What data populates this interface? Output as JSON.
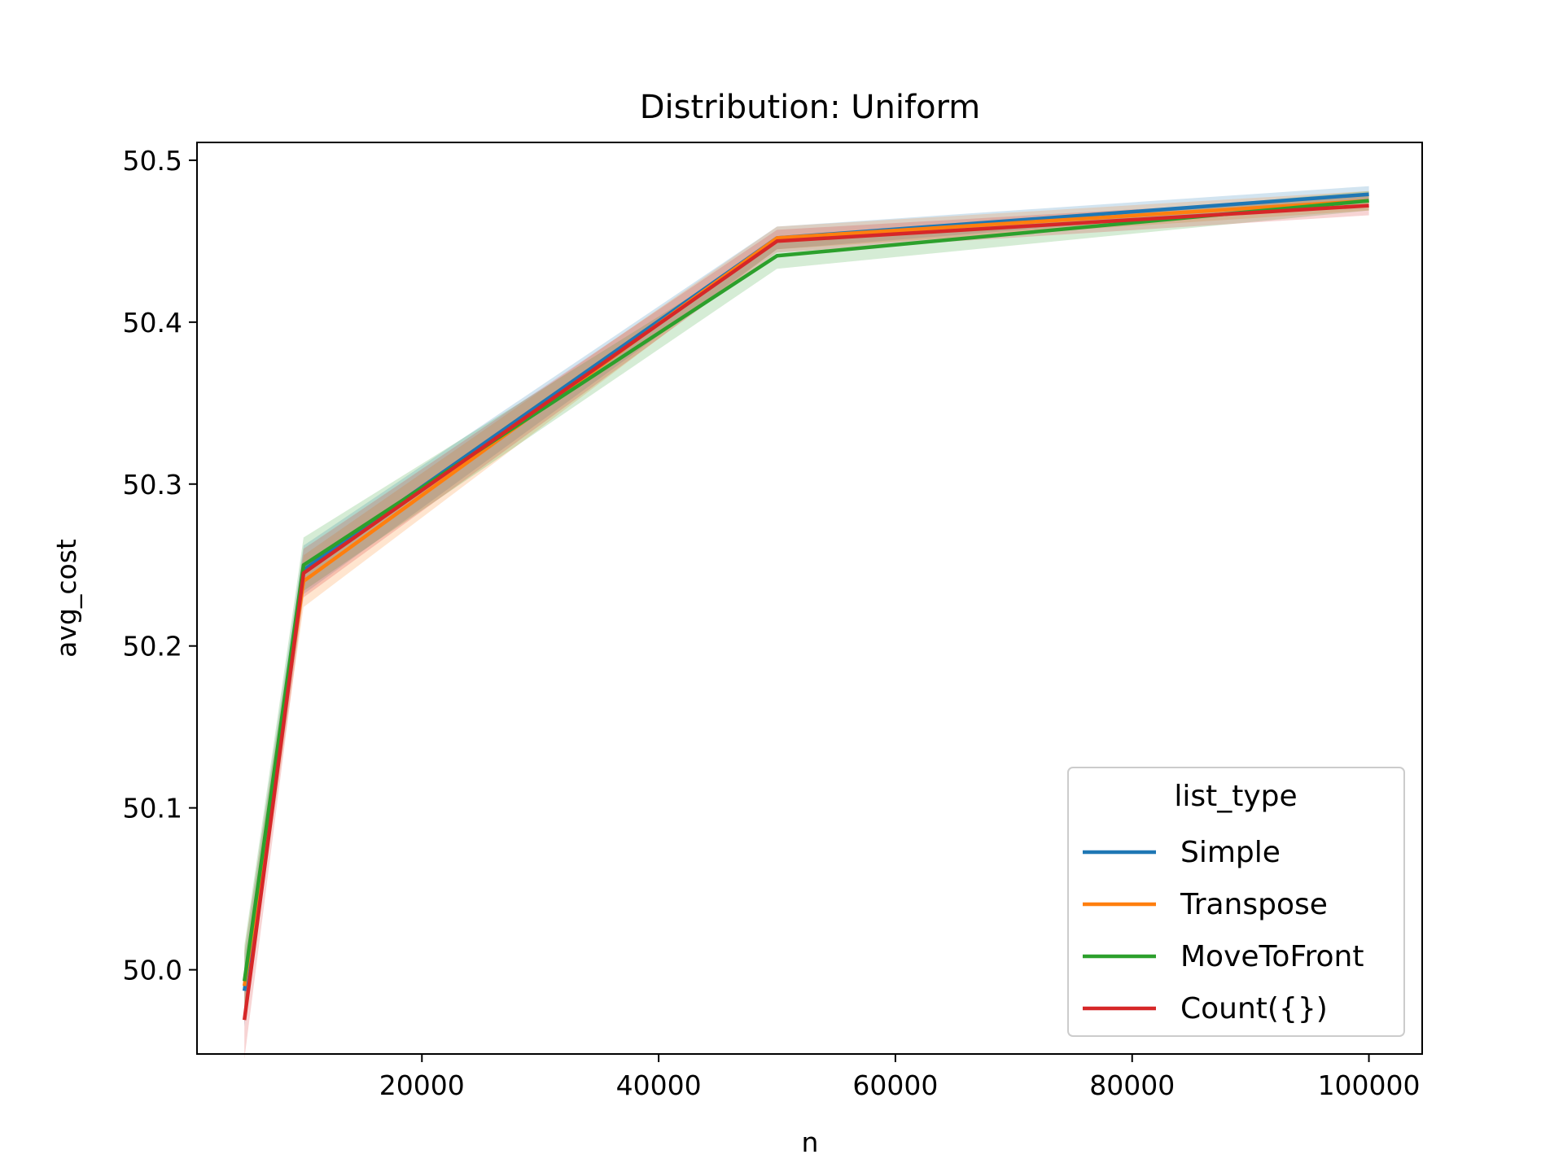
{
  "chart_data": {
    "type": "line",
    "title": "Distribution: Uniform",
    "xlabel": "n",
    "ylabel": "avg_cost",
    "x": [
      5000,
      10000,
      50000,
      100000
    ],
    "xlim": [
      1000,
      104500
    ],
    "ylim": [
      49.948,
      50.511
    ],
    "xticks": [
      20000,
      40000,
      60000,
      80000,
      100000
    ],
    "yticks": [
      50.0,
      50.1,
      50.2,
      50.3,
      50.4,
      50.5
    ],
    "ytick_labels": [
      "50.0",
      "50.1",
      "50.2",
      "50.3",
      "50.4",
      "50.5"
    ],
    "grid": false,
    "legend": {
      "title": "list_type",
      "placement": "lower-right"
    },
    "series": [
      {
        "name": "Simple",
        "color": "#1f77b4",
        "values": [
          49.987,
          50.247,
          50.452,
          50.479
        ],
        "ci_low": [
          49.965,
          50.232,
          50.445,
          50.474
        ],
        "ci_high": [
          50.01,
          50.262,
          50.459,
          50.484
        ]
      },
      {
        "name": "Transpose",
        "color": "#ff7f0e",
        "values": [
          49.99,
          50.24,
          50.452,
          50.475
        ],
        "ci_low": [
          49.968,
          50.224,
          50.445,
          50.469
        ],
        "ci_high": [
          50.012,
          50.256,
          50.459,
          50.481
        ]
      },
      {
        "name": "MoveToFront",
        "color": "#2ca02c",
        "values": [
          49.993,
          50.25,
          50.441,
          50.475
        ],
        "ci_low": [
          49.972,
          50.234,
          50.433,
          50.469
        ],
        "ci_high": [
          50.015,
          50.267,
          50.449,
          50.481
        ]
      },
      {
        "name": "Count({})",
        "color": "#d62728",
        "values": [
          49.969,
          50.245,
          50.45,
          50.472
        ],
        "ci_low": [
          49.945,
          50.23,
          50.443,
          50.466
        ],
        "ci_high": [
          49.993,
          50.26,
          50.457,
          50.478
        ]
      }
    ]
  }
}
